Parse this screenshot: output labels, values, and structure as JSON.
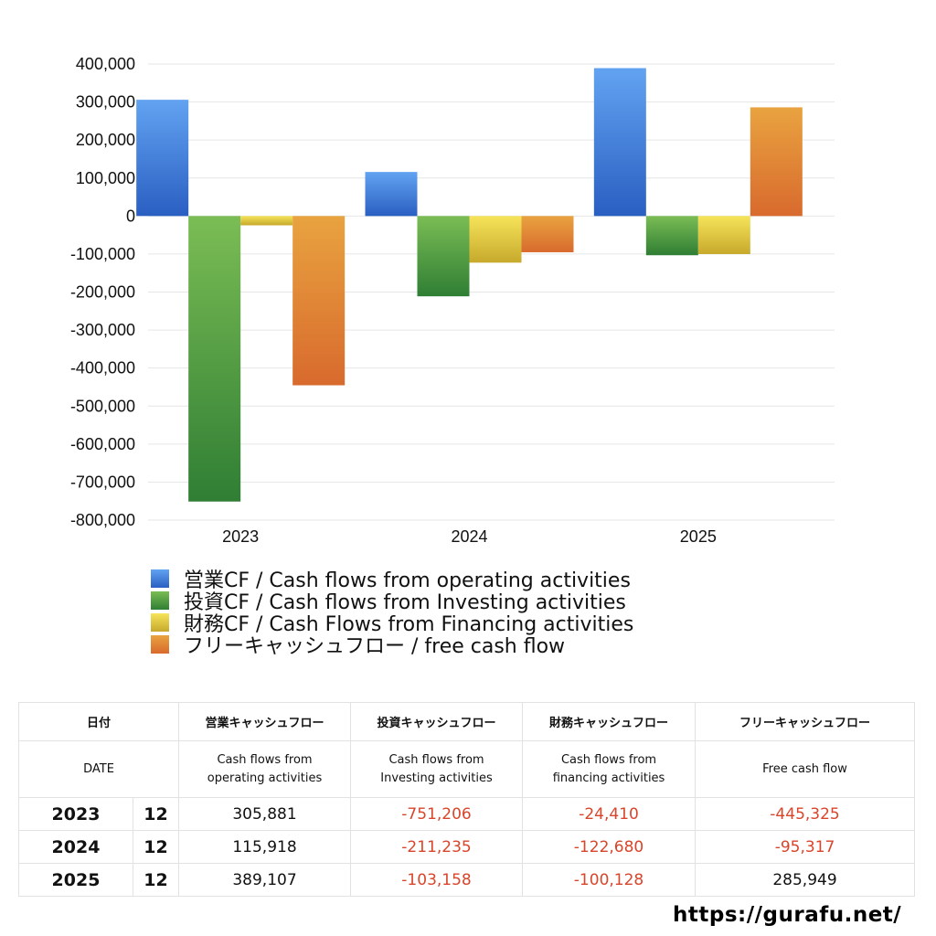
{
  "chart_data": {
    "type": "bar",
    "categories": [
      "2023",
      "2024",
      "2025"
    ],
    "series": [
      {
        "name": "営業CF / Cash flows from operating activities",
        "values": [
          305881,
          115918,
          389107
        ],
        "color_top": "#62a3f1",
        "color_bottom": "#2a5fc2"
      },
      {
        "name": "投資CF / Cash flows from Investing activities",
        "values": [
          -751206,
          -211235,
          -103158
        ],
        "color_top": "#7bbd55",
        "color_bottom": "#2f7e34"
      },
      {
        "name": "財務CF / Cash Flows from Financing activities",
        "values": [
          -24410,
          -122680,
          -100128
        ],
        "color_top": "#f6e45a",
        "color_bottom": "#c7a92c"
      },
      {
        "name": "フリーキャッシュフロー / free cash flow",
        "values": [
          -445325,
          -95317,
          285949
        ],
        "color_top": "#e9a340",
        "color_bottom": "#d86a2d"
      }
    ],
    "ylim": [
      -800000,
      400000
    ],
    "yticks": [
      400000,
      300000,
      200000,
      100000,
      0,
      -100000,
      -200000,
      -300000,
      -400000,
      -500000,
      -600000,
      -700000,
      -800000
    ],
    "ytick_labels": [
      "400,000",
      "300,000",
      "200,000",
      "100,000",
      "0",
      "-100,000",
      "-200,000",
      "-300,000",
      "-400,000",
      "-500,000",
      "-600,000",
      "-700,000",
      "-800,000"
    ],
    "grid": true,
    "legend_position": "bottom-left"
  },
  "table": {
    "headers_jp": [
      "日付",
      "",
      "営業キャッシュフロー",
      "投資キャッシュフロー",
      "財務キャッシュフロー",
      "フリーキャッシュフロー"
    ],
    "header_date_en": "DATE",
    "headers_en": [
      [
        "Cash flows from",
        "operating activities"
      ],
      [
        "Cash flows from",
        "Investing activities"
      ],
      [
        "Cash flows from",
        "financing activities"
      ],
      [
        "Free cash flow",
        ""
      ]
    ],
    "rows": [
      {
        "year": "2023",
        "month": "12",
        "values": [
          "305,881",
          "-751,206",
          "-24,410",
          "-445,325"
        ]
      },
      {
        "year": "2024",
        "month": "12",
        "values": [
          "115,918",
          "-211,235",
          "-122,680",
          "-95,317"
        ]
      },
      {
        "year": "2025",
        "month": "12",
        "values": [
          "389,107",
          "-103,158",
          "-100,128",
          "285,949"
        ]
      }
    ]
  },
  "site_url": "https://gurafu.net/",
  "colors": {
    "negative": "#d9452b",
    "grid": "#e6e6e6",
    "border": "#e2e2e2"
  }
}
